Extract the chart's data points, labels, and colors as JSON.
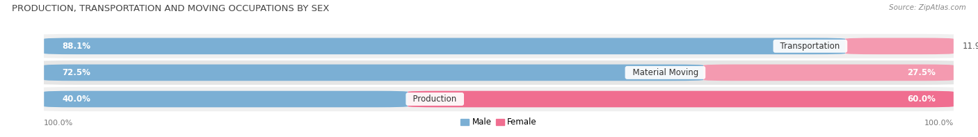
{
  "title": "PRODUCTION, TRANSPORTATION AND MOVING OCCUPATIONS BY SEX",
  "source": "Source: ZipAtlas.com",
  "categories": [
    "Transportation",
    "Material Moving",
    "Production"
  ],
  "male_pct": [
    88.1,
    72.5,
    40.0
  ],
  "female_pct": [
    11.9,
    27.5,
    60.0
  ],
  "male_color": "#7bafd4",
  "female_color": "#f49ab0",
  "female_color_strong": "#f06e90",
  "row_bg_color_odd": "#f0f0f0",
  "row_bg_color_even": "#e6e6e6",
  "title_fontsize": 9.5,
  "source_fontsize": 7.5,
  "label_fontsize": 8.5,
  "pct_fontsize": 8.5,
  "axis_label_fontsize": 8,
  "legend_fontsize": 8.5,
  "figsize": [
    14.06,
    1.97
  ],
  "dpi": 100
}
